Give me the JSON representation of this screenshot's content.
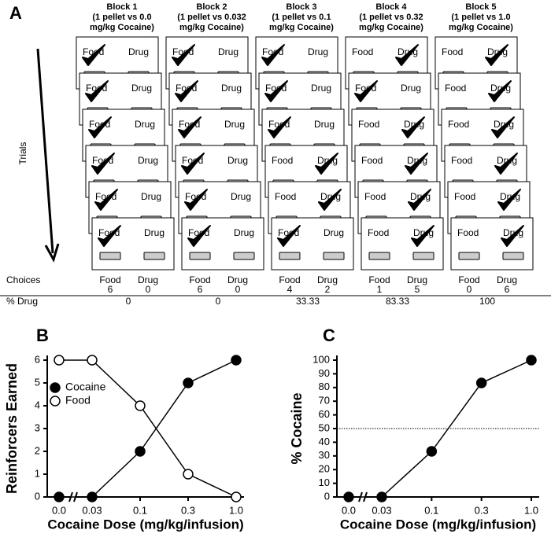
{
  "diagram": {
    "panel": "A",
    "trials_label": "Trials",
    "card_labels": [
      "Food",
      "Drug"
    ],
    "choices_label": "Choices",
    "percent_label": "% Drug",
    "blocks": [
      {
        "title": [
          "Block 1",
          "(1 pellet vs 0.0",
          "mg/kg Cocaine)"
        ],
        "trials": [
          "food",
          "food",
          "food",
          "food",
          "food",
          "food"
        ],
        "food": 6,
        "drug": 0,
        "percent_drug": 0
      },
      {
        "title": [
          "Block 2",
          "(1 pellet vs 0.032",
          "mg/kg Cocaine)"
        ],
        "trials": [
          "food",
          "food",
          "food",
          "food",
          "food",
          "food"
        ],
        "food": 6,
        "drug": 0,
        "percent_drug": 0
      },
      {
        "title": [
          "Block 3",
          "(1 pellet vs 0.1",
          "mg/kg Cocaine)"
        ],
        "trials": [
          "food",
          "food",
          "food",
          "drug",
          "drug",
          "food"
        ],
        "food": 4,
        "drug": 2,
        "percent_drug": 33.33
      },
      {
        "title": [
          "Block 4",
          "(1 pellet vs 0.32",
          "mg/kg Cocaine)"
        ],
        "trials": [
          "drug",
          "food",
          "drug",
          "drug",
          "drug",
          "drug"
        ],
        "food": 1,
        "drug": 5,
        "percent_drug": 83.33
      },
      {
        "title": [
          "Block 5",
          "(1 pellet vs 1.0",
          "mg/kg Cocaine)"
        ],
        "trials": [
          "drug",
          "drug",
          "drug",
          "drug",
          "drug",
          "drug"
        ],
        "food": 0,
        "drug": 6,
        "percent_drug": 100
      }
    ]
  },
  "chart_data": [
    {
      "type": "line",
      "panel": "B",
      "xlabel": "Cocaine Dose (mg/kg/infusion)",
      "ylabel": "Reinforcers Earned",
      "categories": [
        "0.0",
        "0.03",
        "0.1",
        "0.3",
        "1.0"
      ],
      "ylim": [
        0,
        6
      ],
      "yticks": [
        0,
        1,
        2,
        3,
        4,
        5,
        6
      ],
      "legend": "upper left",
      "series": [
        {
          "name": "Cocaine",
          "color": "#000000",
          "marker": "filled",
          "values": [
            0,
            0,
            2,
            5,
            6
          ]
        },
        {
          "name": "Food",
          "color": "#000000",
          "marker": "open",
          "values": [
            6,
            6,
            4,
            1,
            0
          ]
        }
      ]
    },
    {
      "type": "line",
      "panel": "C",
      "xlabel": "Cocaine Dose (mg/kg/infusion)",
      "ylabel": "% Cocaine",
      "categories": [
        "0.0",
        "0.03",
        "0.1",
        "0.3",
        "1.0"
      ],
      "ylim": [
        0,
        100
      ],
      "yticks": [
        0,
        10,
        20,
        30,
        40,
        50,
        60,
        70,
        80,
        90,
        100
      ],
      "reference_line": 50,
      "series": [
        {
          "color": "#000000",
          "marker": "filled",
          "values": [
            0,
            0,
            33.33,
            83.33,
            100
          ]
        }
      ]
    }
  ]
}
